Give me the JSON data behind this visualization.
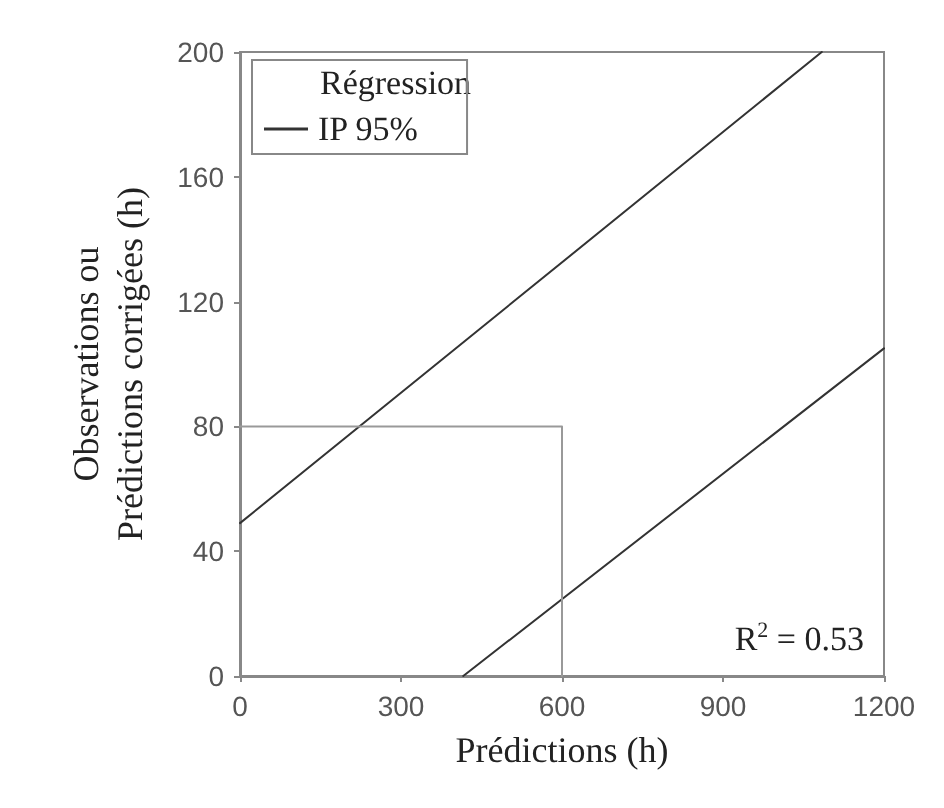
{
  "chart_data": {
    "type": "line",
    "xlabel": "Prédictions (h)",
    "ylabel": "Observations ou\nPrédictions corrigées (h)",
    "legend_title": "Régression",
    "series": [
      {
        "name": "IP 95%",
        "color": "#333333",
        "x": [
          0,
          1084,
          null,
          416,
          1200
        ],
        "values": [
          49,
          200,
          null,
          0,
          105
        ]
      },
      {
        "color": "#999999",
        "x": [
          0,
          600,
          600
        ],
        "values": [
          80,
          80,
          0
        ]
      }
    ],
    "xlim": [
      0,
      1200
    ],
    "xticks": [
      0,
      300,
      600,
      900,
      1200
    ],
    "ylim": [
      0,
      200
    ],
    "yticks": [
      0,
      40,
      80,
      120,
      160,
      200
    ],
    "grid": false,
    "legend": "top left",
    "marker": "none",
    "line_style": "solid",
    "annotations": [
      "R$^{2}$ = 0.53"
    ]
  }
}
